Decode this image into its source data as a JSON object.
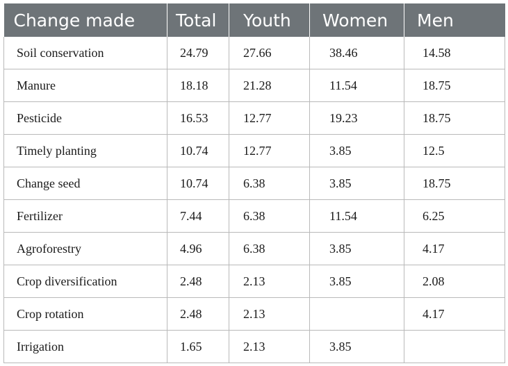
{
  "table": {
    "headers": [
      "Change made",
      "Total",
      "Youth",
      "Women",
      "Men"
    ],
    "rows": [
      [
        "Soil conservation",
        "24.79",
        "27.66",
        "38.46",
        "14.58"
      ],
      [
        "Manure",
        "18.18",
        "21.28",
        "11.54",
        "18.75"
      ],
      [
        "Pesticide",
        "16.53",
        "12.77",
        "19.23",
        "18.75"
      ],
      [
        "Timely planting",
        "10.74",
        "12.77",
        "3.85",
        "12.5"
      ],
      [
        "Change seed",
        "10.74",
        "6.38",
        "3.85",
        "18.75"
      ],
      [
        "Fertilizer",
        "7.44",
        "6.38",
        "11.54",
        "6.25"
      ],
      [
        "Agroforestry",
        "4.96",
        "6.38",
        "3.85",
        "4.17"
      ],
      [
        "Crop diversification",
        "2.48",
        "2.13",
        "3.85",
        "2.08"
      ],
      [
        "Crop rotation",
        "2.48",
        "2.13",
        "",
        "4.17"
      ],
      [
        "Irrigation",
        "1.65",
        "2.13",
        "3.85",
        ""
      ]
    ]
  },
  "colors": {
    "header_bg": "#6e7478",
    "header_text": "#ffffff",
    "grid": "#b9b9b9"
  }
}
